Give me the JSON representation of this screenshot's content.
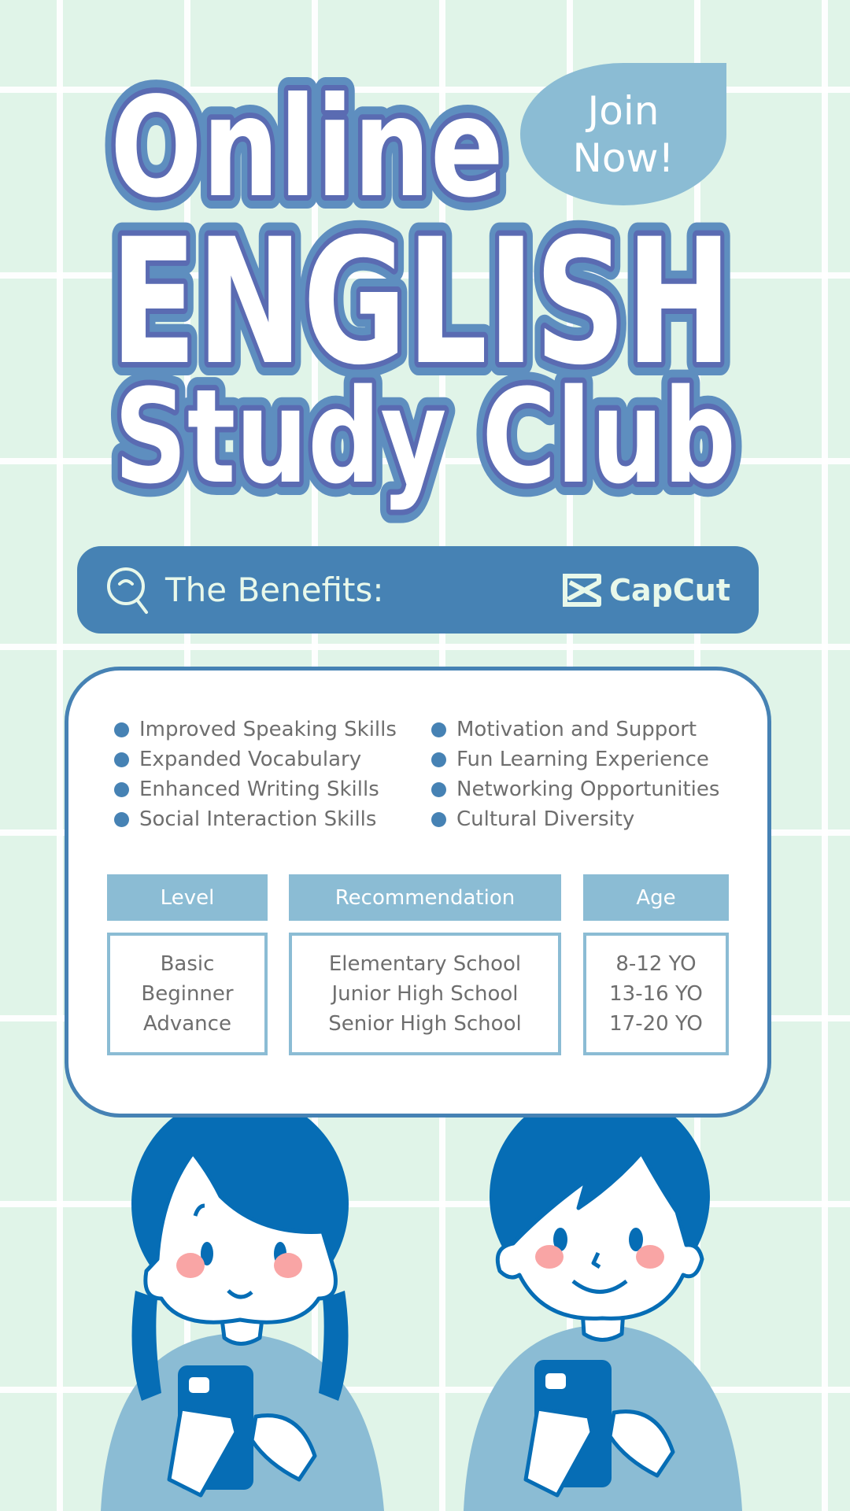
{
  "title": {
    "line1": "Online",
    "line2": "ENGLISH",
    "line3": "Study Club"
  },
  "join_button": {
    "line1": "Join",
    "line2": "Now!"
  },
  "banner": {
    "label": "The Benefits:",
    "icon": "search-icon",
    "brand": "CapCut"
  },
  "benefits": {
    "left": [
      "Improved Speaking Skills",
      "Expanded Vocabulary",
      "Enhanced Writing Skills",
      "Social Interaction Skills"
    ],
    "right": [
      "Motivation and Support",
      "Fun Learning Experience",
      "Networking Opportunities",
      "Cultural Diversity"
    ]
  },
  "table": {
    "headers": [
      "Level",
      "Recommendation",
      "Age"
    ],
    "columns": [
      [
        "Basic",
        "Beginner",
        "Advance"
      ],
      [
        "Elementary School",
        "Junior High School",
        "Senior High School"
      ],
      [
        "8-12 YO",
        "13-16 YO",
        "17-20 YO"
      ]
    ]
  },
  "colors": {
    "accent": "#4682b4",
    "light_blue": "#8bbcd4",
    "hair": "#066db5",
    "background": "#e0f4e8",
    "cheek": "#f9a5a5"
  }
}
